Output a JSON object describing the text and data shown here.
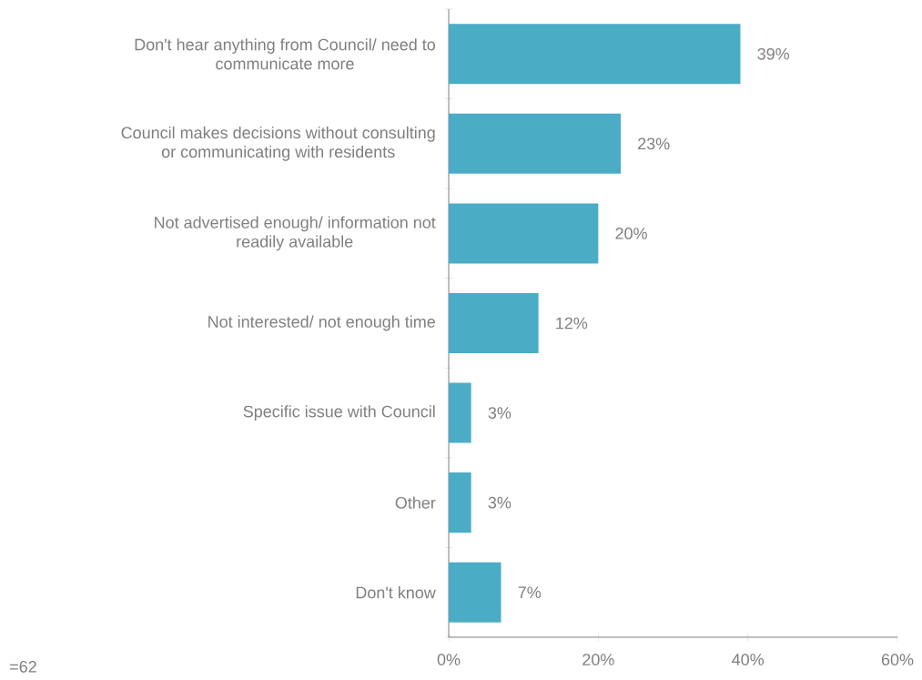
{
  "chart_data": {
    "type": "bar",
    "orientation": "horizontal",
    "categories": [
      "Don't hear anything from Council/ need to communicate more",
      "Council makes decisions without consulting or communicating with residents",
      "Not advertised enough/ information not readily available",
      "Not interested/ not enough time",
      "Specific issue with Council",
      "Other",
      "Don't know"
    ],
    "values": [
      39,
      23,
      20,
      12,
      3,
      3,
      7
    ],
    "value_labels": [
      "39%",
      "23%",
      "20%",
      "12%",
      "3%",
      "3%",
      "7%"
    ],
    "color": "#4bacc6",
    "xlim": [
      0,
      60
    ],
    "xticks": [
      {
        "value": 0,
        "label": "0%"
      },
      {
        "value": 20,
        "label": "20%"
      },
      {
        "value": 40,
        "label": "40%"
      },
      {
        "value": 60,
        "label": "60%"
      }
    ],
    "grid": false,
    "annotations": [
      "=62"
    ]
  }
}
